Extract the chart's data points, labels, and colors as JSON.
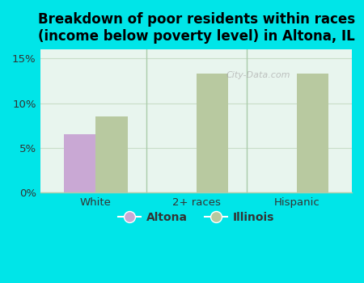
{
  "title": "Breakdown of poor residents within races\n(income below poverty level) in Altona, IL",
  "categories": [
    "White",
    "2+ races",
    "Hispanic"
  ],
  "altona_values": [
    6.5,
    null,
    null
  ],
  "illinois_values": [
    8.5,
    13.3,
    13.3
  ],
  "altona_color": "#c9a8d4",
  "illinois_color": "#b8c9a0",
  "bar_width": 0.32,
  "ylim": [
    0,
    0.16
  ],
  "yticks": [
    0,
    0.05,
    0.1,
    0.15
  ],
  "ytick_labels": [
    "0%",
    "5%",
    "10%",
    "15%"
  ],
  "background_outer": "#00e5e8",
  "background_inner": "#e8f5ee",
  "grid_color": "#c8ddc8",
  "title_fontsize": 12,
  "title_fontweight": "bold",
  "legend_labels": [
    "Altona",
    "Illinois"
  ],
  "watermark": "City-Data.com",
  "separator_color": "#aaccaa"
}
